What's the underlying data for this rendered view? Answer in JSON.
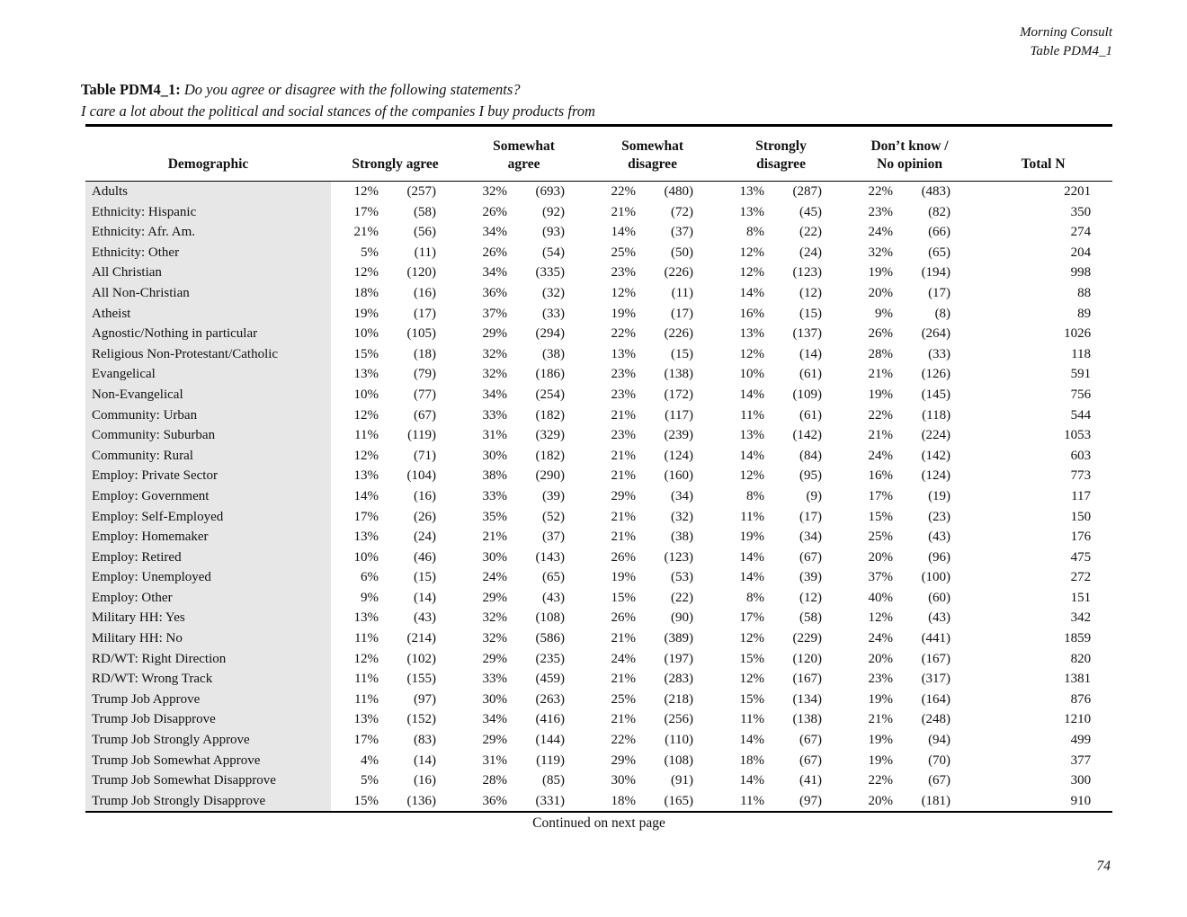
{
  "doc_header": {
    "line1": "Morning Consult",
    "line2": "Table PDM4_1"
  },
  "title": {
    "label": "Table PDM4_1:",
    "question": "Do you agree or disagree with the following statements?",
    "statement": "I care a lot about the political and social stances of the companies I buy products from"
  },
  "footer": {
    "continued": "Continued on next page",
    "page_number": "74"
  },
  "table": {
    "col_demographic": "Demographic",
    "group_headers": [
      "Strongly agree",
      "Somewhat\nagree",
      "Somewhat\ndisagree",
      "Strongly\ndisagree",
      "Don’t know /\nNo opinion"
    ],
    "total_label": "Total N",
    "rows": [
      {
        "demographic": "Adults",
        "values": [
          "12%",
          "(257)",
          "32%",
          "(693)",
          "22%",
          "(480)",
          "13%",
          "(287)",
          "22%",
          "(483)"
        ],
        "total": "2201"
      },
      {
        "demographic": "Ethnicity: Hispanic",
        "values": [
          "17%",
          "(58)",
          "26%",
          "(92)",
          "21%",
          "(72)",
          "13%",
          "(45)",
          "23%",
          "(82)"
        ],
        "total": "350"
      },
      {
        "demographic": "Ethnicity: Afr. Am.",
        "values": [
          "21%",
          "(56)",
          "34%",
          "(93)",
          "14%",
          "(37)",
          "8%",
          "(22)",
          "24%",
          "(66)"
        ],
        "total": "274"
      },
      {
        "demographic": "Ethnicity: Other",
        "values": [
          "5%",
          "(11)",
          "26%",
          "(54)",
          "25%",
          "(50)",
          "12%",
          "(24)",
          "32%",
          "(65)"
        ],
        "total": "204"
      },
      {
        "demographic": "All Christian",
        "values": [
          "12%",
          "(120)",
          "34%",
          "(335)",
          "23%",
          "(226)",
          "12%",
          "(123)",
          "19%",
          "(194)"
        ],
        "total": "998"
      },
      {
        "demographic": "All Non-Christian",
        "values": [
          "18%",
          "(16)",
          "36%",
          "(32)",
          "12%",
          "(11)",
          "14%",
          "(12)",
          "20%",
          "(17)"
        ],
        "total": "88"
      },
      {
        "demographic": "Atheist",
        "values": [
          "19%",
          "(17)",
          "37%",
          "(33)",
          "19%",
          "(17)",
          "16%",
          "(15)",
          "9%",
          "(8)"
        ],
        "total": "89"
      },
      {
        "demographic": "Agnostic/Nothing in particular",
        "values": [
          "10%",
          "(105)",
          "29%",
          "(294)",
          "22%",
          "(226)",
          "13%",
          "(137)",
          "26%",
          "(264)"
        ],
        "total": "1026"
      },
      {
        "demographic": "Religious Non-Protestant/Catholic",
        "values": [
          "15%",
          "(18)",
          "32%",
          "(38)",
          "13%",
          "(15)",
          "12%",
          "(14)",
          "28%",
          "(33)"
        ],
        "total": "118"
      },
      {
        "demographic": "Evangelical",
        "values": [
          "13%",
          "(79)",
          "32%",
          "(186)",
          "23%",
          "(138)",
          "10%",
          "(61)",
          "21%",
          "(126)"
        ],
        "total": "591"
      },
      {
        "demographic": "Non-Evangelical",
        "values": [
          "10%",
          "(77)",
          "34%",
          "(254)",
          "23%",
          "(172)",
          "14%",
          "(109)",
          "19%",
          "(145)"
        ],
        "total": "756"
      },
      {
        "demographic": "Community: Urban",
        "values": [
          "12%",
          "(67)",
          "33%",
          "(182)",
          "21%",
          "(117)",
          "11%",
          "(61)",
          "22%",
          "(118)"
        ],
        "total": "544"
      },
      {
        "demographic": "Community: Suburban",
        "values": [
          "11%",
          "(119)",
          "31%",
          "(329)",
          "23%",
          "(239)",
          "13%",
          "(142)",
          "21%",
          "(224)"
        ],
        "total": "1053"
      },
      {
        "demographic": "Community: Rural",
        "values": [
          "12%",
          "(71)",
          "30%",
          "(182)",
          "21%",
          "(124)",
          "14%",
          "(84)",
          "24%",
          "(142)"
        ],
        "total": "603"
      },
      {
        "demographic": "Employ: Private Sector",
        "values": [
          "13%",
          "(104)",
          "38%",
          "(290)",
          "21%",
          "(160)",
          "12%",
          "(95)",
          "16%",
          "(124)"
        ],
        "total": "773"
      },
      {
        "demographic": "Employ: Government",
        "values": [
          "14%",
          "(16)",
          "33%",
          "(39)",
          "29%",
          "(34)",
          "8%",
          "(9)",
          "17%",
          "(19)"
        ],
        "total": "117"
      },
      {
        "demographic": "Employ: Self-Employed",
        "values": [
          "17%",
          "(26)",
          "35%",
          "(52)",
          "21%",
          "(32)",
          "11%",
          "(17)",
          "15%",
          "(23)"
        ],
        "total": "150"
      },
      {
        "demographic": "Employ: Homemaker",
        "values": [
          "13%",
          "(24)",
          "21%",
          "(37)",
          "21%",
          "(38)",
          "19%",
          "(34)",
          "25%",
          "(43)"
        ],
        "total": "176"
      },
      {
        "demographic": "Employ: Retired",
        "values": [
          "10%",
          "(46)",
          "30%",
          "(143)",
          "26%",
          "(123)",
          "14%",
          "(67)",
          "20%",
          "(96)"
        ],
        "total": "475"
      },
      {
        "demographic": "Employ: Unemployed",
        "values": [
          "6%",
          "(15)",
          "24%",
          "(65)",
          "19%",
          "(53)",
          "14%",
          "(39)",
          "37%",
          "(100)"
        ],
        "total": "272"
      },
      {
        "demographic": "Employ: Other",
        "values": [
          "9%",
          "(14)",
          "29%",
          "(43)",
          "15%",
          "(22)",
          "8%",
          "(12)",
          "40%",
          "(60)"
        ],
        "total": "151"
      },
      {
        "demographic": "Military HH: Yes",
        "values": [
          "13%",
          "(43)",
          "32%",
          "(108)",
          "26%",
          "(90)",
          "17%",
          "(58)",
          "12%",
          "(43)"
        ],
        "total": "342"
      },
      {
        "demographic": "Military HH: No",
        "values": [
          "11%",
          "(214)",
          "32%",
          "(586)",
          "21%",
          "(389)",
          "12%",
          "(229)",
          "24%",
          "(441)"
        ],
        "total": "1859"
      },
      {
        "demographic": "RD/WT: Right Direction",
        "values": [
          "12%",
          "(102)",
          "29%",
          "(235)",
          "24%",
          "(197)",
          "15%",
          "(120)",
          "20%",
          "(167)"
        ],
        "total": "820"
      },
      {
        "demographic": "RD/WT: Wrong Track",
        "values": [
          "11%",
          "(155)",
          "33%",
          "(459)",
          "21%",
          "(283)",
          "12%",
          "(167)",
          "23%",
          "(317)"
        ],
        "total": "1381"
      },
      {
        "demographic": "Trump Job Approve",
        "values": [
          "11%",
          "(97)",
          "30%",
          "(263)",
          "25%",
          "(218)",
          "15%",
          "(134)",
          "19%",
          "(164)"
        ],
        "total": "876"
      },
      {
        "demographic": "Trump Job Disapprove",
        "values": [
          "13%",
          "(152)",
          "34%",
          "(416)",
          "21%",
          "(256)",
          "11%",
          "(138)",
          "21%",
          "(248)"
        ],
        "total": "1210"
      },
      {
        "demographic": "Trump Job Strongly Approve",
        "values": [
          "17%",
          "(83)",
          "29%",
          "(144)",
          "22%",
          "(110)",
          "14%",
          "(67)",
          "19%",
          "(94)"
        ],
        "total": "499"
      },
      {
        "demographic": "Trump Job Somewhat Approve",
        "values": [
          "4%",
          "(14)",
          "31%",
          "(119)",
          "29%",
          "(108)",
          "18%",
          "(67)",
          "19%",
          "(70)"
        ],
        "total": "377"
      },
      {
        "demographic": "Trump Job Somewhat Disapprove",
        "values": [
          "5%",
          "(16)",
          "28%",
          "(85)",
          "30%",
          "(91)",
          "14%",
          "(41)",
          "22%",
          "(67)"
        ],
        "total": "300"
      },
      {
        "demographic": "Trump Job Strongly Disapprove",
        "values": [
          "15%",
          "(136)",
          "36%",
          "(331)",
          "18%",
          "(165)",
          "11%",
          "(97)",
          "20%",
          "(181)"
        ],
        "total": "910"
      }
    ]
  }
}
